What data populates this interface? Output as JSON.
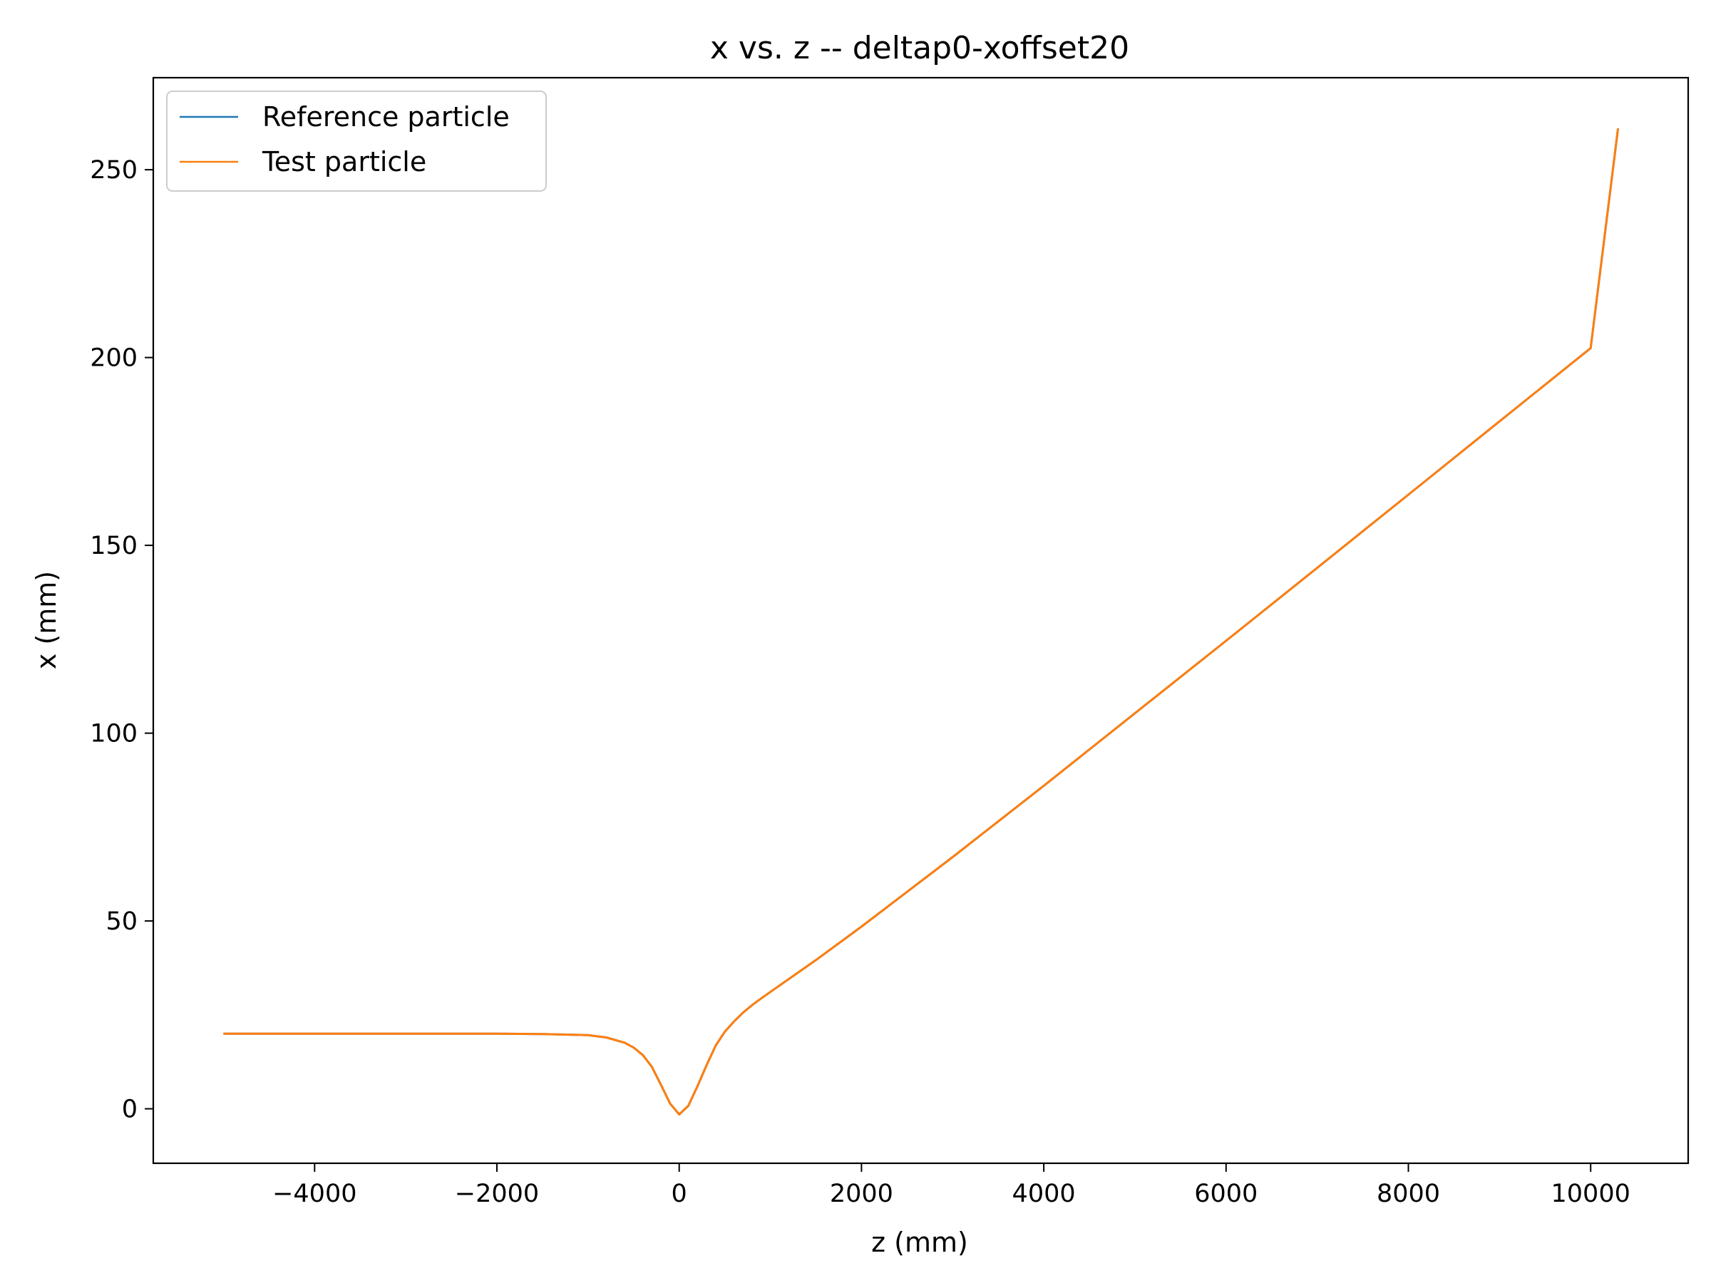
{
  "chart_data": {
    "type": "line",
    "title": "x vs. z -- deltap0-xoffset20",
    "xlabel": "z (mm)",
    "ylabel": "x (mm)",
    "xlim": [
      -5770,
      11070
    ],
    "ylim": [
      -14.5,
      274.5
    ],
    "xticks": [
      -4000,
      -2000,
      0,
      2000,
      4000,
      6000,
      8000,
      10000
    ],
    "xtick_labels": [
      "−4000",
      "−2000",
      "0",
      "2000",
      "4000",
      "6000",
      "8000",
      "10000"
    ],
    "yticks": [
      0,
      50,
      100,
      150,
      200,
      250
    ],
    "ytick_labels": [
      "0",
      "50",
      "100",
      "150",
      "200",
      "250"
    ],
    "grid": false,
    "legend_position": "top-left",
    "series": [
      {
        "name": "Reference particle",
        "color": "#1f77b4",
        "x": [
          -5000,
          -4000,
          -3000,
          -2000,
          -1500,
          -1000,
          -800,
          -600,
          -500,
          -400,
          -300,
          -200,
          -100,
          0,
          100,
          200,
          300,
          400,
          500,
          600,
          700,
          800,
          900,
          1000,
          1500,
          2000,
          3000,
          4000,
          5000,
          6000,
          7000,
          8000,
          9000,
          10000,
          10300
        ],
        "y": [
          20,
          20,
          20,
          20,
          19.9,
          19.6,
          19.0,
          17.6,
          16.3,
          14.3,
          11.2,
          6.4,
          1.4,
          -1.5,
          0.8,
          6.0,
          11.6,
          16.8,
          20.5,
          23.2,
          25.6,
          27.6,
          29.4,
          31.1,
          39.6,
          48.5,
          67.0,
          86.0,
          105.3,
          124.6,
          144.0,
          163.5,
          183.0,
          202.5,
          261.0
        ]
      },
      {
        "name": "Test particle",
        "color": "#ff7f0e",
        "x": [
          -5000,
          -4000,
          -3000,
          -2000,
          -1500,
          -1000,
          -800,
          -600,
          -500,
          -400,
          -300,
          -200,
          -100,
          0,
          100,
          200,
          300,
          400,
          500,
          600,
          700,
          800,
          900,
          1000,
          1500,
          2000,
          3000,
          4000,
          5000,
          6000,
          7000,
          8000,
          9000,
          10000,
          10300
        ],
        "y": [
          20,
          20,
          20,
          20,
          19.9,
          19.6,
          19.0,
          17.6,
          16.3,
          14.3,
          11.2,
          6.4,
          1.4,
          -1.5,
          0.8,
          6.0,
          11.6,
          16.8,
          20.5,
          23.2,
          25.6,
          27.6,
          29.4,
          31.1,
          39.6,
          48.5,
          67.0,
          86.0,
          105.3,
          124.6,
          144.0,
          163.5,
          183.0,
          202.5,
          261.0
        ]
      }
    ]
  }
}
